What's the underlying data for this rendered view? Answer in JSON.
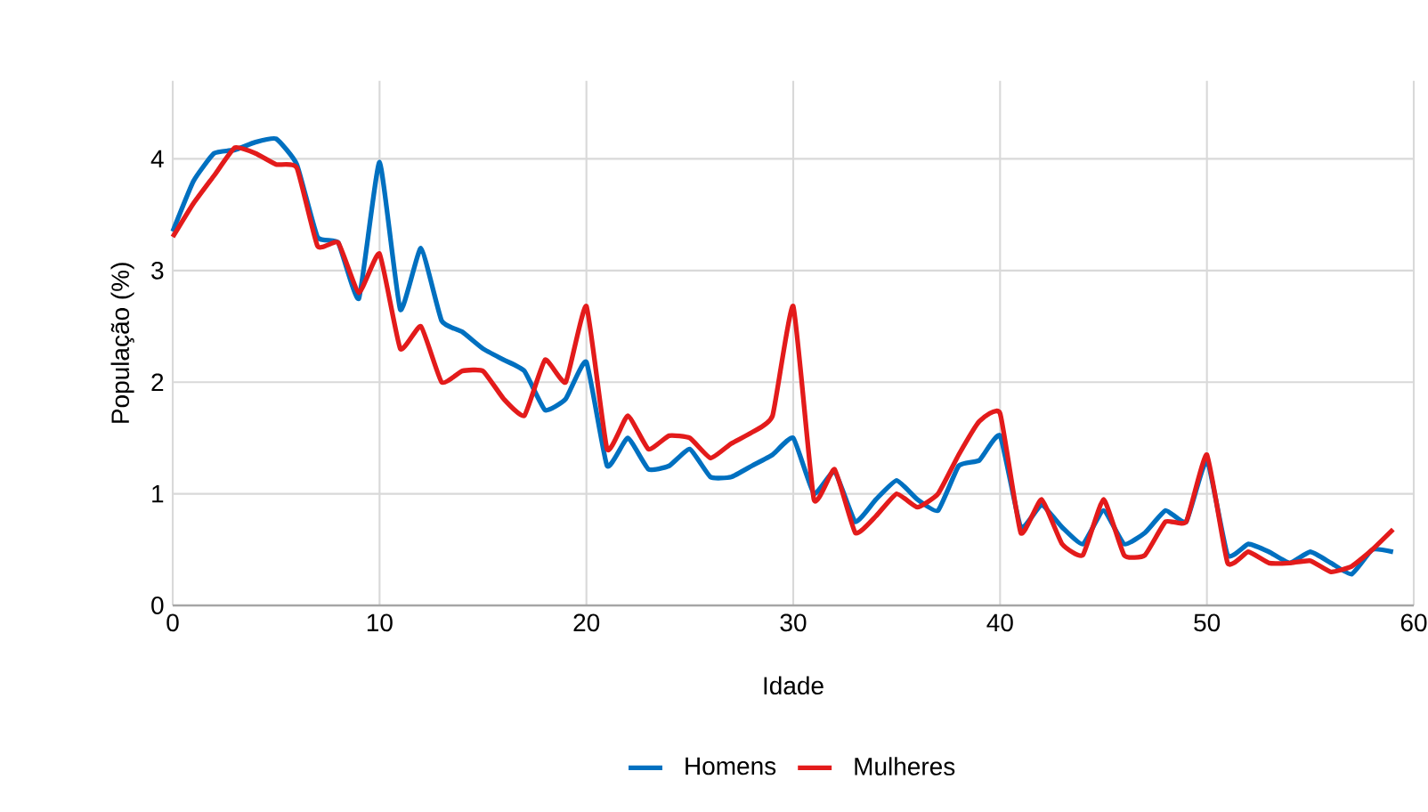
{
  "chart_data": {
    "type": "line",
    "xlabel": "Idade",
    "ylabel": "População (%)",
    "x": [
      0,
      1,
      2,
      3,
      4,
      5,
      6,
      7,
      8,
      9,
      10,
      11,
      12,
      13,
      14,
      15,
      16,
      17,
      18,
      19,
      20,
      21,
      22,
      23,
      24,
      25,
      26,
      27,
      28,
      29,
      30,
      31,
      32,
      33,
      34,
      35,
      36,
      37,
      38,
      39,
      40,
      41,
      42,
      43,
      44,
      45,
      46,
      47,
      48,
      49,
      50,
      51,
      52,
      53,
      54,
      55,
      56,
      57,
      58,
      59
    ],
    "series": [
      {
        "name": "Homens",
        "color": "#0070c0",
        "values": [
          3.35,
          3.8,
          4.05,
          4.08,
          4.15,
          4.18,
          3.95,
          3.3,
          3.25,
          2.75,
          3.97,
          2.65,
          3.2,
          2.55,
          2.45,
          2.3,
          2.2,
          2.1,
          1.75,
          1.85,
          2.18,
          1.25,
          1.5,
          1.22,
          1.25,
          1.4,
          1.15,
          1.15,
          1.25,
          1.35,
          1.5,
          1.0,
          1.2,
          0.75,
          0.95,
          1.12,
          0.95,
          0.85,
          1.25,
          1.3,
          1.52,
          0.7,
          0.9,
          0.7,
          0.55,
          0.85,
          0.55,
          0.65,
          0.85,
          0.75,
          1.3,
          0.45,
          0.55,
          0.48,
          0.38,
          0.48,
          0.38,
          0.28,
          0.5,
          0.48
        ]
      },
      {
        "name": "Mulheres",
        "color": "#e31b1b",
        "values": [
          3.3,
          3.6,
          3.85,
          4.1,
          4.05,
          3.95,
          3.92,
          3.22,
          3.25,
          2.8,
          3.15,
          2.3,
          2.5,
          2.0,
          2.1,
          2.1,
          1.85,
          1.7,
          2.2,
          2.0,
          2.68,
          1.4,
          1.7,
          1.4,
          1.52,
          1.5,
          1.32,
          1.45,
          1.55,
          1.7,
          2.68,
          0.95,
          1.22,
          0.65,
          0.8,
          1.0,
          0.88,
          1.0,
          1.35,
          1.65,
          1.72,
          0.65,
          0.95,
          0.55,
          0.45,
          0.95,
          0.45,
          0.45,
          0.75,
          0.75,
          1.35,
          0.38,
          0.48,
          0.38,
          0.38,
          0.4,
          0.3,
          0.35,
          0.5,
          0.68
        ]
      }
    ],
    "xlim": [
      0,
      60
    ],
    "ylim": [
      0,
      4.7
    ],
    "xticks": [
      0,
      10,
      20,
      30,
      40,
      50,
      60
    ],
    "yticks": [
      0,
      1,
      2,
      3,
      4
    ],
    "grid": true,
    "legend": "bottom",
    "marker": "none",
    "line_style": "solid"
  }
}
